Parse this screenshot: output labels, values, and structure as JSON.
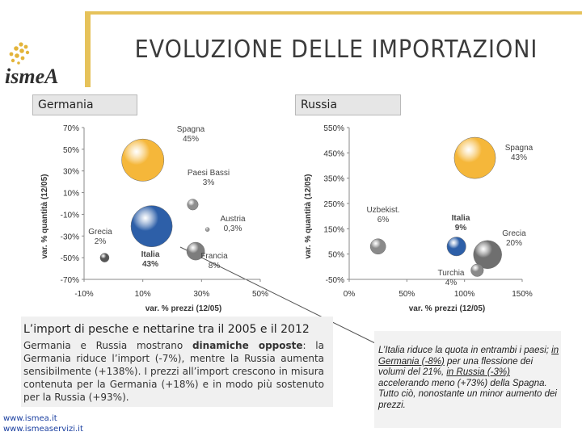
{
  "header": {
    "title": "EVOLUZIONE DELLE IMPORTAZIONI",
    "logo": "ismeA"
  },
  "labels": {
    "germany": "Germania",
    "russia": "Russia"
  },
  "chart_data": [
    {
      "type": "scatter",
      "subtype": "bubble",
      "title": "Germania",
      "xlabel": "var. % prezzi (12/05)",
      "ylabel": "var. % quantità (12/05)",
      "xlim": [
        -10,
        50
      ],
      "ylim": [
        -70,
        70
      ],
      "xticks": [
        "-10%",
        "10%",
        "30%",
        "50%"
      ],
      "yticks": [
        "70%",
        "50%",
        "30%",
        "10%",
        "-10%",
        "-30%",
        "-50%",
        "-70%"
      ],
      "points": [
        {
          "name": "Spagna",
          "share": "45%",
          "x": 10,
          "y": 40,
          "share_pct": 45,
          "color": "#f5b73a"
        },
        {
          "name": "Paesi Bassi",
          "share": "3%",
          "x": 27,
          "y": -1,
          "share_pct": 3,
          "color": "#8f8f8f"
        },
        {
          "name": "Austria",
          "share": "0,3%",
          "x": 32,
          "y": -24,
          "share_pct": 0.3,
          "color": "#9a9a9a"
        },
        {
          "name": "Italia",
          "share": "43%",
          "x": 13,
          "y": -21,
          "share_pct": 43,
          "color": "#2d5fa8"
        },
        {
          "name": "Francia",
          "share": "8%",
          "x": 28,
          "y": -44,
          "share_pct": 8,
          "color": "#7d7d7d"
        },
        {
          "name": "Grecia",
          "share": "2%",
          "x": -3,
          "y": -50,
          "share_pct": 2,
          "color": "#555555"
        }
      ]
    },
    {
      "type": "scatter",
      "subtype": "bubble",
      "title": "Russia",
      "xlabel": "var. % prezzi (12/05)",
      "ylabel": "var. % quantità (12/05)",
      "xlim": [
        0,
        150
      ],
      "ylim": [
        -50,
        550
      ],
      "xticks": [
        "0%",
        "50%",
        "100%",
        "150%"
      ],
      "yticks": [
        "550%",
        "450%",
        "350%",
        "250%",
        "150%",
        "50%",
        "-50%"
      ],
      "points": [
        {
          "name": "Spagna",
          "share": "43%",
          "x": 109,
          "y": 430,
          "share_pct": 43,
          "color": "#f5b73a"
        },
        {
          "name": "Uzbekist.",
          "share": "6%",
          "x": 25,
          "y": 80,
          "share_pct": 6,
          "color": "#8a8a8a"
        },
        {
          "name": "Italia",
          "share": "9%",
          "x": 93,
          "y": 80,
          "share_pct": 9,
          "color": "#2d5fa8"
        },
        {
          "name": "Grecia",
          "share": "20%",
          "x": 120,
          "y": 48,
          "share_pct": 20,
          "color": "#6f6f6f"
        },
        {
          "name": "Turchia",
          "share": "4%",
          "x": 111,
          "y": -14,
          "share_pct": 4,
          "color": "#8a8a8a"
        }
      ]
    }
  ],
  "description": {
    "title": "L’import di pesche e nettarine tra il 2005 e il 2012",
    "part1": "Germania e Russia mostrano ",
    "bold": "dinamiche opposte",
    "part2": ": la Germania riduce l’import (-7%), mentre la Russia aumenta sensibilmente (+138%). I prezzi all’import crescono in misura contenuta per la Germania (+18%) e in modo più sostenuto per la Russia (+93%)."
  },
  "note": {
    "line1": "L’Italia riduce la quota in entrambi i paesi; ",
    "u1": "in Germania (-8%)",
    "mid": " per una flessione dei volumi del 21%, ",
    "u2": "in Russia (-3%)",
    "end": " accelerando meno (+73%) della Spagna.",
    "line2": "Tutto ciò, nonostante un minor aumento dei prezzi."
  },
  "footer": {
    "site1": "www.ismea.it",
    "site2": "www.ismeaservizi.it"
  }
}
